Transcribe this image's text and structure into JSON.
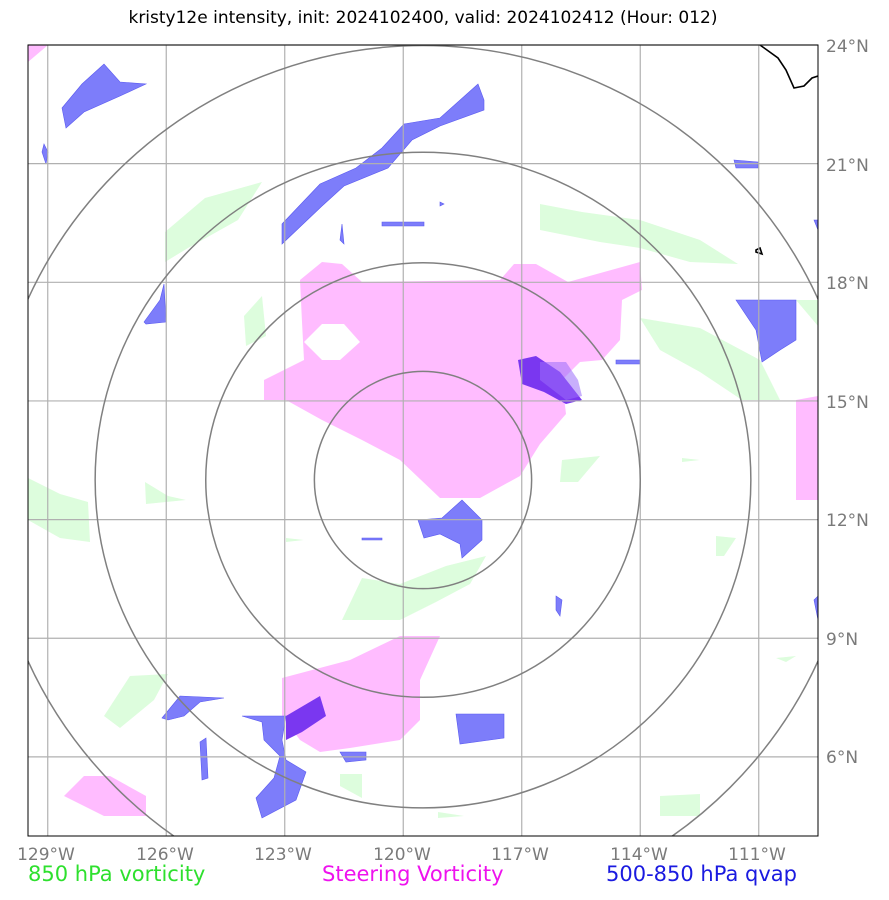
{
  "title": "kristy12e intensity, init: 2024102400, valid: 2024102412 (Hour: 012)",
  "map": {
    "lon_labels": [
      "129°W",
      "126°W",
      "123°W",
      "120°W",
      "117°W",
      "114°W",
      "111°W"
    ],
    "lat_labels": [
      "24°N",
      "21°N",
      "18°N",
      "15°N",
      "12°N",
      "9°N",
      "6°N"
    ],
    "extent": {
      "lon_min": -129.5,
      "lon_max": -109.5,
      "lat_min": 4,
      "lat_max": 24
    },
    "center": {
      "lon": -119.5,
      "lat": 13.0
    },
    "range_rings_deg": [
      2.75,
      5.5,
      8.3,
      11.0
    ]
  },
  "legend": {
    "vorticity_850": {
      "label": "850 hPa vorticity",
      "color": "#2ee02e"
    },
    "steering_vorticity": {
      "label": "Steering Vorticity",
      "color": "#ee12ee"
    },
    "qvap": {
      "label": "500-850 hPa qvap",
      "color": "#1a1ae0"
    }
  },
  "colors": {
    "green_fill": "#ddfddd",
    "pink_fill": "#ffbcff",
    "blue_fill": "#7d7dfa",
    "purple_fill": "#7a37f0"
  }
}
